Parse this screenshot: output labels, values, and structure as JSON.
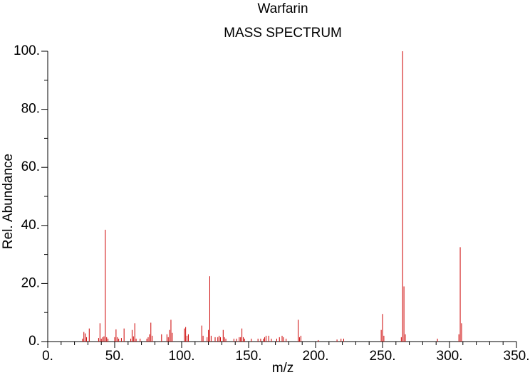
{
  "chart_data": {
    "type": "stick",
    "title": "Warfarin",
    "subtitle": "MASS SPECTRUM",
    "xlabel": "m/z",
    "ylabel": "Rel. Abundance",
    "color": "#cc0000",
    "x": [
      26,
      27,
      28,
      29,
      31,
      38,
      39,
      40,
      41,
      42,
      43,
      44,
      45,
      50,
      51,
      52,
      53,
      55,
      57,
      62,
      63,
      64,
      65,
      66,
      69,
      74,
      75,
      76,
      77,
      78,
      85,
      89,
      90,
      91,
      92,
      93,
      102,
      103,
      104,
      105,
      115,
      116,
      119,
      120,
      121,
      122,
      125,
      127,
      128,
      129,
      131,
      132,
      133,
      139,
      141,
      143,
      144,
      145,
      146,
      147,
      152,
      157,
      159,
      161,
      162,
      163,
      165,
      167,
      171,
      173,
      175,
      176,
      178,
      187,
      188,
      189,
      202,
      216,
      219,
      221,
      249,
      250,
      251,
      264,
      265,
      266,
      267,
      291,
      307,
      308,
      309
    ],
    "values": [
      1.0,
      3.3,
      2.8,
      1.5,
      4.5,
      1.2,
      6.3,
      1.0,
      1.5,
      1.8,
      38.5,
      1.5,
      1.0,
      1.5,
      4.2,
      1.5,
      1.0,
      1.2,
      4.5,
      1.0,
      4.0,
      1.8,
      6.3,
      1.0,
      1.0,
      1.0,
      1.5,
      2.5,
      6.5,
      2.0,
      2.5,
      2.5,
      1.5,
      4.0,
      7.5,
      3.0,
      4.5,
      5.0,
      2.0,
      2.5,
      5.5,
      2.0,
      1.5,
      4.0,
      22.5,
      2.0,
      1.5,
      1.5,
      2.0,
      1.5,
      4.0,
      1.5,
      1.0,
      1.0,
      1.0,
      1.5,
      1.5,
      4.5,
      1.5,
      1.0,
      1.0,
      1.0,
      1.0,
      1.0,
      1.5,
      2.0,
      2.0,
      1.0,
      1.0,
      1.5,
      2.0,
      1.5,
      1.0,
      7.5,
      1.5,
      2.0,
      0.5,
      0.7,
      1.0,
      1.0,
      4.0,
      9.5,
      2.0,
      1.5,
      100,
      19,
      2.5,
      1.0,
      2.5,
      32.5,
      6.3
    ],
    "xlim": [
      0,
      350
    ],
    "xticks": [
      {
        "value": 0,
        "label": "0."
      },
      {
        "value": 50,
        "label": "50."
      },
      {
        "value": 100,
        "label": "100."
      },
      {
        "value": 150,
        "label": "150."
      },
      {
        "value": 200,
        "label": "200."
      },
      {
        "value": 250,
        "label": "250."
      },
      {
        "value": 300,
        "label": "300."
      },
      {
        "value": 350,
        "label": "350."
      }
    ],
    "xminorticks": [
      10,
      20,
      30,
      40,
      60,
      70,
      80,
      90,
      110,
      120,
      130,
      140,
      160,
      170,
      180,
      190,
      210,
      220,
      230,
      240,
      260,
      270,
      280,
      290,
      310,
      320,
      330,
      340
    ],
    "ylim": [
      0,
      100
    ],
    "yticks": [
      {
        "value": 0,
        "label": "0."
      },
      {
        "value": 20,
        "label": "20."
      },
      {
        "value": 40,
        "label": "40."
      },
      {
        "value": 60,
        "label": "60."
      },
      {
        "value": 80,
        "label": "80."
      },
      {
        "value": 100,
        "label": "100."
      }
    ],
    "yminorticks": [
      10,
      30,
      50,
      70,
      90
    ]
  }
}
